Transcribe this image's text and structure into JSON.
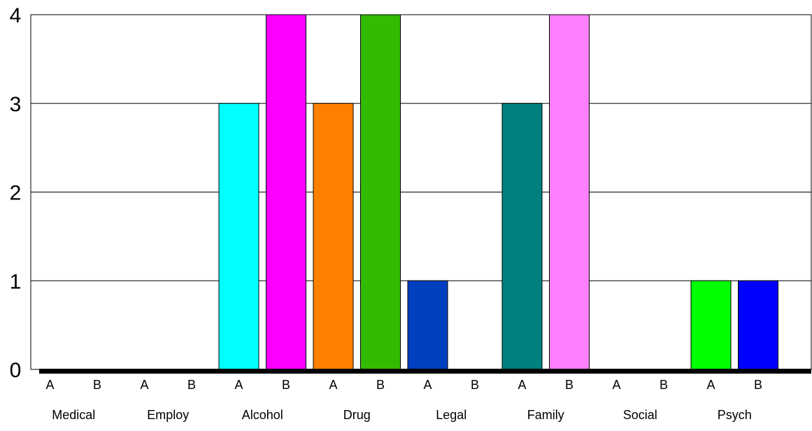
{
  "chart_data": {
    "type": "bar",
    "categories": [
      "Medical",
      "Employ",
      "Alcohol",
      "Drug",
      "Legal",
      "Family",
      "Social",
      "Psych"
    ],
    "subcategories": [
      "A",
      "B"
    ],
    "bars": [
      {
        "category": "Medical",
        "sub": "A",
        "value": 0,
        "color": "#ffffff"
      },
      {
        "category": "Medical",
        "sub": "B",
        "value": 0,
        "color": "#ffffff"
      },
      {
        "category": "Employ",
        "sub": "A",
        "value": 0,
        "color": "#ffffff"
      },
      {
        "category": "Employ",
        "sub": "B",
        "value": 0,
        "color": "#ffffff"
      },
      {
        "category": "Alcohol",
        "sub": "A",
        "value": 3,
        "color": "#00ffff"
      },
      {
        "category": "Alcohol",
        "sub": "B",
        "value": 4,
        "color": "#ff00ff"
      },
      {
        "category": "Drug",
        "sub": "A",
        "value": 3,
        "color": "#ff8000"
      },
      {
        "category": "Drug",
        "sub": "B",
        "value": 4,
        "color": "#33bb00"
      },
      {
        "category": "Legal",
        "sub": "A",
        "value": 1,
        "color": "#0040c0"
      },
      {
        "category": "Legal",
        "sub": "B",
        "value": 0,
        "color": "#ffffff"
      },
      {
        "category": "Family",
        "sub": "A",
        "value": 3,
        "color": "#008080"
      },
      {
        "category": "Family",
        "sub": "B",
        "value": 4,
        "color": "#ff80ff"
      },
      {
        "category": "Social",
        "sub": "A",
        "value": 0,
        "color": "#ffffff"
      },
      {
        "category": "Social",
        "sub": "B",
        "value": 0,
        "color": "#ffffff"
      },
      {
        "category": "Psych",
        "sub": "A",
        "value": 1,
        "color": "#00ff00"
      },
      {
        "category": "Psych",
        "sub": "B",
        "value": 1,
        "color": "#0000ff"
      }
    ],
    "yticks": [
      "0",
      "1",
      "2",
      "3",
      "4"
    ],
    "ylim": [
      0,
      4
    ],
    "grid": true,
    "legend": "none"
  }
}
